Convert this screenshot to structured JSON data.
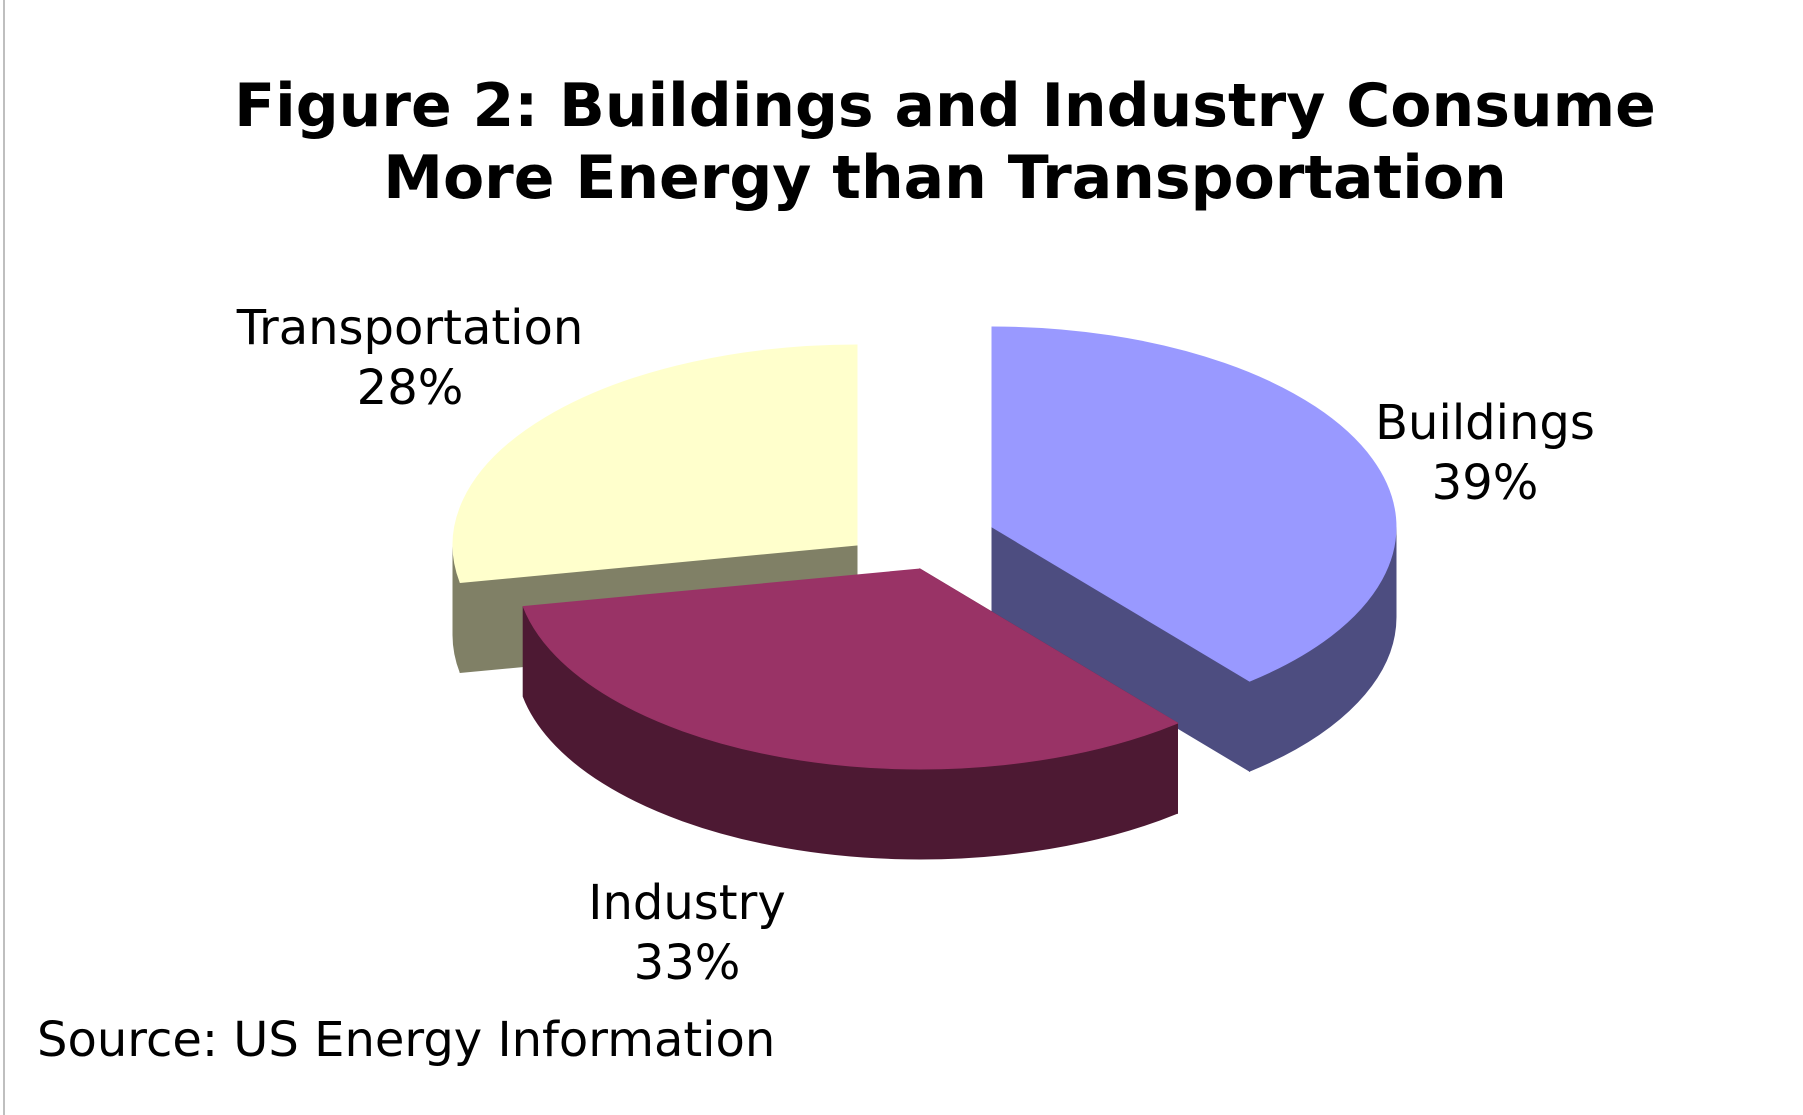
{
  "chart_data": {
    "type": "pie",
    "title_line1": "Figure 2: Buildings and Industry Consume",
    "title_line2": "More Energy than Transportation",
    "slices": [
      {
        "category": "Buildings",
        "percent_label": "39%",
        "value": 39,
        "color": "#9999ff",
        "side_color": "#4d4d80"
      },
      {
        "category": "Industry",
        "percent_label": "33%",
        "value": 33,
        "color": "#993366",
        "side_color": "#4d1933"
      },
      {
        "category": "Transportation",
        "percent_label": "28%",
        "value": 28,
        "color": "#ffffcc",
        "side_color": "#808066"
      }
    ],
    "source": "Source: US Energy Information"
  }
}
